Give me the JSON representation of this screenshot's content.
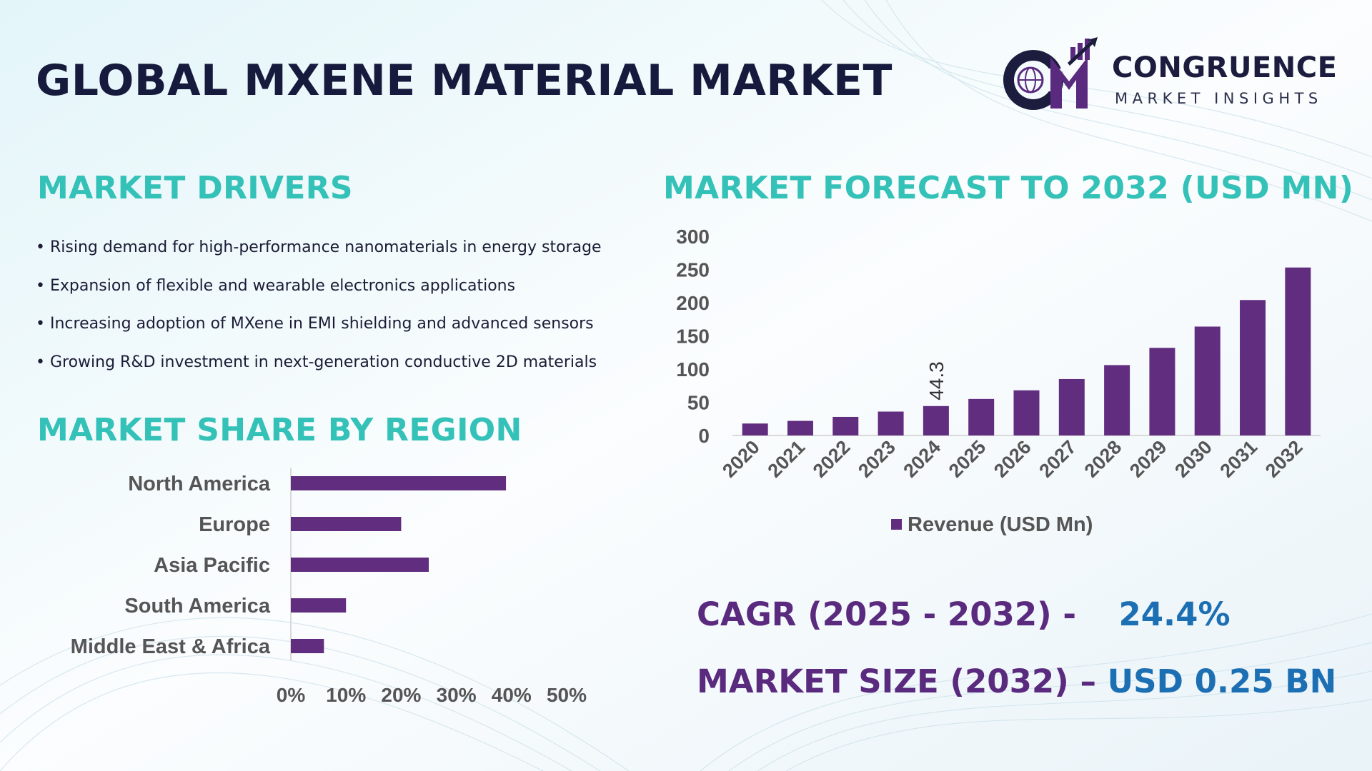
{
  "title": "GLOBAL MXENE MATERIAL MARKET",
  "logo": {
    "name": "CONGRUENCE",
    "tagline": "MARKET INSIGHTS"
  },
  "drivers": {
    "heading": "MARKET DRIVERS",
    "items": [
      "Rising demand for high-performance nanomaterials in energy storage",
      "Expansion of flexible and wearable electronics applications",
      "Increasing adoption of MXene in EMI shielding and advanced sensors",
      "Growing R&D investment in next-generation conductive 2D materials"
    ]
  },
  "forecast": {
    "heading": "MARKET FORECAST TO 2032 (USD MN)"
  },
  "region": {
    "heading": "MARKET SHARE BY REGION"
  },
  "stats": {
    "cagr_label": "CAGR (2025 - 2032) -",
    "cagr_value": "24.4%",
    "size_label": "MARKET SIZE (2032) –",
    "size_value": "USD 0.25 BN"
  },
  "colors": {
    "bar": "#612d7f",
    "heading": "#34c1b8",
    "title": "#161a3d",
    "stat_label": "#5a2a7e",
    "stat_value": "#1d6fb3",
    "axis_text": "#555555",
    "logo_accent": "#5a2a7e"
  },
  "chart_data": [
    {
      "type": "bar",
      "categories": [
        "2020",
        "2021",
        "2022",
        "2023",
        "2024",
        "2025",
        "2026",
        "2027",
        "2028",
        "2029",
        "2030",
        "2031",
        "2032"
      ],
      "series": [
        {
          "name": "Revenue (USD Mn)",
          "values": [
            18,
            22,
            28,
            36,
            44.3,
            55,
            68,
            85,
            106,
            132,
            164,
            204,
            253
          ]
        }
      ],
      "data_labels": [
        {
          "category": "2024",
          "text": "44.3"
        }
      ],
      "yticks": [
        "300",
        "250",
        "200",
        "150",
        "100",
        "50",
        "0"
      ],
      "ylim": [
        0,
        300
      ],
      "legend": "bottom",
      "grid": false
    },
    {
      "type": "bar",
      "orientation": "horizontal",
      "categories": [
        "North America",
        "Europe",
        "Asia Pacific",
        "South America",
        "Middle East & Africa"
      ],
      "values": [
        39,
        20,
        25,
        10,
        6
      ],
      "xticks": [
        "0%",
        "10%",
        "20%",
        "30%",
        "40%",
        "50%"
      ],
      "xlim": [
        0,
        50
      ],
      "grid": false
    }
  ]
}
